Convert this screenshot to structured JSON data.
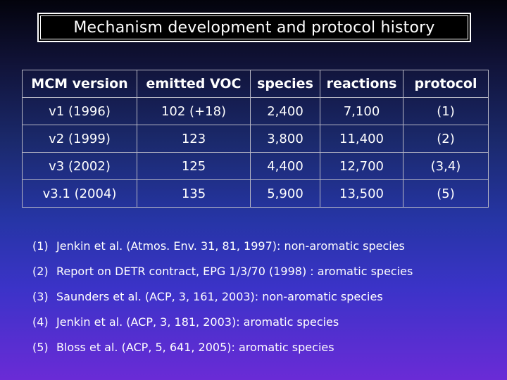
{
  "slide": {
    "title": "Mechanism development and protocol history"
  },
  "table": {
    "headers": [
      "MCM version",
      "emitted VOC",
      "species",
      "reactions",
      "protocol"
    ],
    "rows": [
      [
        "v1 (1996)",
        "102 (+18)",
        "2,400",
        "7,100",
        "(1)"
      ],
      [
        "v2 (1999)",
        "123",
        "3,800",
        "11,400",
        "(2)"
      ],
      [
        "v3 (2002)",
        "125",
        "4,400",
        "12,700",
        "(3,4)"
      ],
      [
        "v3.1 (2004)",
        "135",
        "5,900",
        "13,500",
        "(5)"
      ]
    ]
  },
  "notes": [
    {
      "num": "(1)",
      "text": "Jenkin et al. (Atmos. Env. 31, 81, 1997): non-aromatic species"
    },
    {
      "num": "(2)",
      "text": "Report on DETR contract, EPG 1/3/70 (1998) : aromatic species"
    },
    {
      "num": "(3)",
      "text": "Saunders et al. (ACP, 3, 161, 2003): non-aromatic species"
    },
    {
      "num": "(4)",
      "text": "Jenkin et al. (ACP, 3, 181, 2003): aromatic species"
    },
    {
      "num": "(5)",
      "text": "Bloss et al. (ACP, 5, 641, 2005): aromatic species"
    }
  ]
}
